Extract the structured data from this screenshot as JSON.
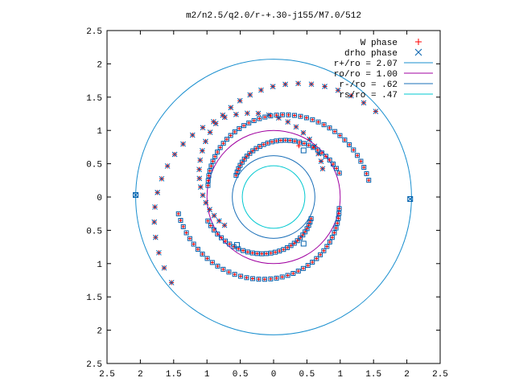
{
  "chart_data": {
    "type": "scatter",
    "title": "m2/n2.5/q2.0/r-+.30-j155/M7.0/512",
    "xlabel": "",
    "ylabel": "",
    "xlim": [
      -2.5,
      2.5
    ],
    "ylim": [
      -2.5,
      2.5
    ],
    "x_tick_values": [
      -2.5,
      -2,
      -1.5,
      -1,
      -0.5,
      0,
      0.5,
      1,
      1.5,
      2,
      2.5
    ],
    "x_tick_labels": [
      "2.5",
      "2",
      "1.5",
      "1",
      "0.5",
      "0",
      "0.5",
      "1",
      "1.5",
      "2",
      "2.5"
    ],
    "y_tick_values": [
      2.5,
      2,
      1.5,
      1,
      0.5,
      0,
      -0.5,
      -1,
      -1.5,
      -2,
      -2.5
    ],
    "y_tick_labels": [
      "2.5",
      "2",
      "1.5",
      "1",
      "0.5",
      "0",
      "0.5",
      "1",
      "1.5",
      "2",
      "2.5"
    ],
    "grid": false,
    "legend_position": "top-right",
    "colors": {
      "w_phase": "#ff0000",
      "drho_phase": "#0060ad",
      "circle_outer": "#1a8fcf",
      "circle_ro": "#a000a0",
      "circle_rminus": "#1a6fb8",
      "circle_rs": "#00c8d0",
      "axes": "#000000"
    },
    "legend": [
      {
        "label": "W phase",
        "marker": "plus",
        "color": "#ff0000"
      },
      {
        "label": "drho phase",
        "marker": "cross",
        "color": "#0060ad"
      },
      {
        "label": "r+/ro = 2.07",
        "marker": "line",
        "color": "#1a8fcf"
      },
      {
        "label": "ro/ro = 1.00",
        "marker": "line",
        "color": "#a000a0"
      },
      {
        "label": "r-/ro = .62",
        "marker": "line",
        "color": "#1a6fb8"
      },
      {
        "label": "rs/ro = .47",
        "marker": "line",
        "color": "#00c8d0"
      }
    ],
    "circles": [
      {
        "name": "r+/ro = 2.07",
        "radius": 2.07
      },
      {
        "name": "ro/ro = 1.00",
        "radius": 1.0
      },
      {
        "name": "r-/ro = .62",
        "radius": 0.62
      },
      {
        "name": "rs/ro = .47",
        "radius": 0.47
      }
    ],
    "spiral_arms": [
      {
        "r0": 0.85,
        "r1": 2.0,
        "theta0_deg": 210,
        "theta1_deg": 40,
        "points": 28
      },
      {
        "r0": 0.85,
        "r1": 2.0,
        "theta0_deg": 30,
        "theta1_deg": 220,
        "points": 28
      },
      {
        "r0": 1.0,
        "r1": 1.45,
        "theta0_deg": 170,
        "theta1_deg": 10,
        "points": 40
      },
      {
        "r0": 1.0,
        "r1": 1.45,
        "theta0_deg": 350,
        "theta1_deg": 190,
        "points": 40
      },
      {
        "r0": 0.65,
        "r1": 1.05,
        "theta0_deg": 150,
        "theta1_deg": 20,
        "points": 30
      },
      {
        "r0": 0.65,
        "r1": 1.05,
        "theta0_deg": 330,
        "theta1_deg": 200,
        "points": 30
      }
    ],
    "special_points": [
      {
        "series": "drho_phase",
        "x": -2.07,
        "y": 0.03
      },
      {
        "series": "drho_phase",
        "x": 2.05,
        "y": -0.03
      },
      {
        "series": "drho_phase",
        "x": 0.45,
        "y": 0.7
      },
      {
        "series": "drho_phase",
        "x": 0.45,
        "y": -0.7
      },
      {
        "series": "drho_phase",
        "x": -0.55,
        "y": -0.72
      },
      {
        "series": "w_phase",
        "x": 0.38,
        "y": 0.77
      }
    ]
  }
}
